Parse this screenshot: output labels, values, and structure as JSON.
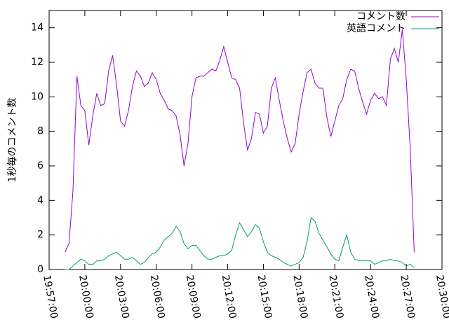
{
  "chart_data": {
    "type": "line",
    "ylabel": "1秒毎のコメント数",
    "x": [
      "19:58:20",
      "19:58:40",
      "19:59:00",
      "19:59:20",
      "19:59:40",
      "20:00:00",
      "20:00:20",
      "20:00:40",
      "20:01:00",
      "20:01:20",
      "20:01:40",
      "20:02:00",
      "20:02:20",
      "20:02:40",
      "20:03:00",
      "20:03:20",
      "20:03:40",
      "20:04:00",
      "20:04:20",
      "20:04:40",
      "20:05:00",
      "20:05:20",
      "20:05:40",
      "20:06:00",
      "20:06:20",
      "20:06:40",
      "20:07:00",
      "20:07:20",
      "20:07:40",
      "20:08:00",
      "20:08:20",
      "20:08:40",
      "20:09:00",
      "20:09:20",
      "20:09:40",
      "20:10:00",
      "20:10:20",
      "20:10:40",
      "20:11:00",
      "20:11:20",
      "20:11:40",
      "20:12:00",
      "20:12:20",
      "20:12:40",
      "20:13:00",
      "20:13:20",
      "20:13:40",
      "20:14:00",
      "20:14:20",
      "20:14:40",
      "20:15:00",
      "20:15:20",
      "20:15:40",
      "20:16:00",
      "20:16:20",
      "20:16:40",
      "20:17:00",
      "20:17:20",
      "20:17:40",
      "20:18:00",
      "20:18:20",
      "20:18:40",
      "20:19:00",
      "20:19:20",
      "20:19:40",
      "20:20:00",
      "20:20:20",
      "20:20:40",
      "20:21:00",
      "20:21:20",
      "20:21:40",
      "20:22:00",
      "20:22:20",
      "20:22:40",
      "20:23:00",
      "20:23:20",
      "20:23:40",
      "20:24:00",
      "20:24:20",
      "20:24:40",
      "20:25:00",
      "20:25:20",
      "20:25:40",
      "20:26:00",
      "20:26:20",
      "20:26:40",
      "20:27:00",
      "20:27:20",
      "20:27:40"
    ],
    "series": [
      {
        "name": "コメント数",
        "color": "#9400d3",
        "values": [
          1.0,
          1.5,
          4.5,
          11.2,
          9.5,
          9.2,
          7.2,
          8.9,
          10.2,
          9.5,
          9.6,
          11.5,
          12.4,
          10.7,
          8.6,
          8.3,
          9.2,
          10.6,
          11.5,
          11.2,
          10.6,
          10.8,
          11.4,
          11.0,
          10.2,
          9.8,
          9.3,
          9.2,
          8.9,
          7.8,
          6.0,
          7.3,
          10.0,
          11.1,
          11.2,
          11.2,
          11.4,
          11.6,
          11.5,
          12.1,
          12.9,
          12.0,
          11.1,
          11.0,
          10.5,
          8.5,
          6.9,
          7.6,
          9.1,
          9.0,
          7.9,
          8.3,
          10.5,
          11.1,
          9.8,
          8.6,
          7.6,
          6.8,
          7.3,
          9.0,
          10.3,
          11.4,
          11.6,
          10.8,
          10.5,
          10.5,
          8.8,
          7.7,
          8.6,
          9.5,
          9.9,
          11.0,
          11.6,
          11.5,
          10.5,
          9.7,
          9.0,
          9.8,
          10.2,
          9.9,
          10.0,
          9.5,
          12.2,
          12.8,
          12.0,
          13.9,
          11.0,
          7.0,
          1.0
        ]
      },
      {
        "name": "英語コメント",
        "color": "#009e73",
        "values": [
          0,
          0,
          0.2,
          0.4,
          0.6,
          0.5,
          0.3,
          0.3,
          0.5,
          0.5,
          0.6,
          0.8,
          0.9,
          1.0,
          0.8,
          0.6,
          0.6,
          0.7,
          0.5,
          0.3,
          0.4,
          0.7,
          0.9,
          1.0,
          1.3,
          1.7,
          1.9,
          2.1,
          2.5,
          2.2,
          1.5,
          1.2,
          1.4,
          1.4,
          1.1,
          0.8,
          0.6,
          0.6,
          0.7,
          0.8,
          0.8,
          0.9,
          1.1,
          2.0,
          2.7,
          2.3,
          1.9,
          2.2,
          2.6,
          2.4,
          1.6,
          1.0,
          0.8,
          0.7,
          0.6,
          0.4,
          0.3,
          0.2,
          0.3,
          0.4,
          0.7,
          1.6,
          3.0,
          2.8,
          2.1,
          1.7,
          1.3,
          0.9,
          0.6,
          0.5,
          1.3,
          2.0,
          1.0,
          0.6,
          0.5,
          0.5,
          0.5,
          0.5,
          0.3,
          0.4,
          0.5,
          0.5,
          0.6,
          0.5,
          0.5,
          0.4,
          0.2,
          0.3,
          0.1
        ]
      }
    ],
    "xlim": [
      "19:57:00",
      "20:30:00"
    ],
    "xticks": [
      "19:57:00",
      "20:00:00",
      "20:03:00",
      "20:06:00",
      "20:09:00",
      "20:12:00",
      "20:15:00",
      "20:18:00",
      "20:21:00",
      "20:24:00",
      "20:27:00",
      "20:30:00"
    ],
    "ylim": [
      0,
      15
    ],
    "yticks": [
      0,
      2,
      4,
      6,
      8,
      10,
      12,
      14
    ],
    "legend": "top right"
  }
}
